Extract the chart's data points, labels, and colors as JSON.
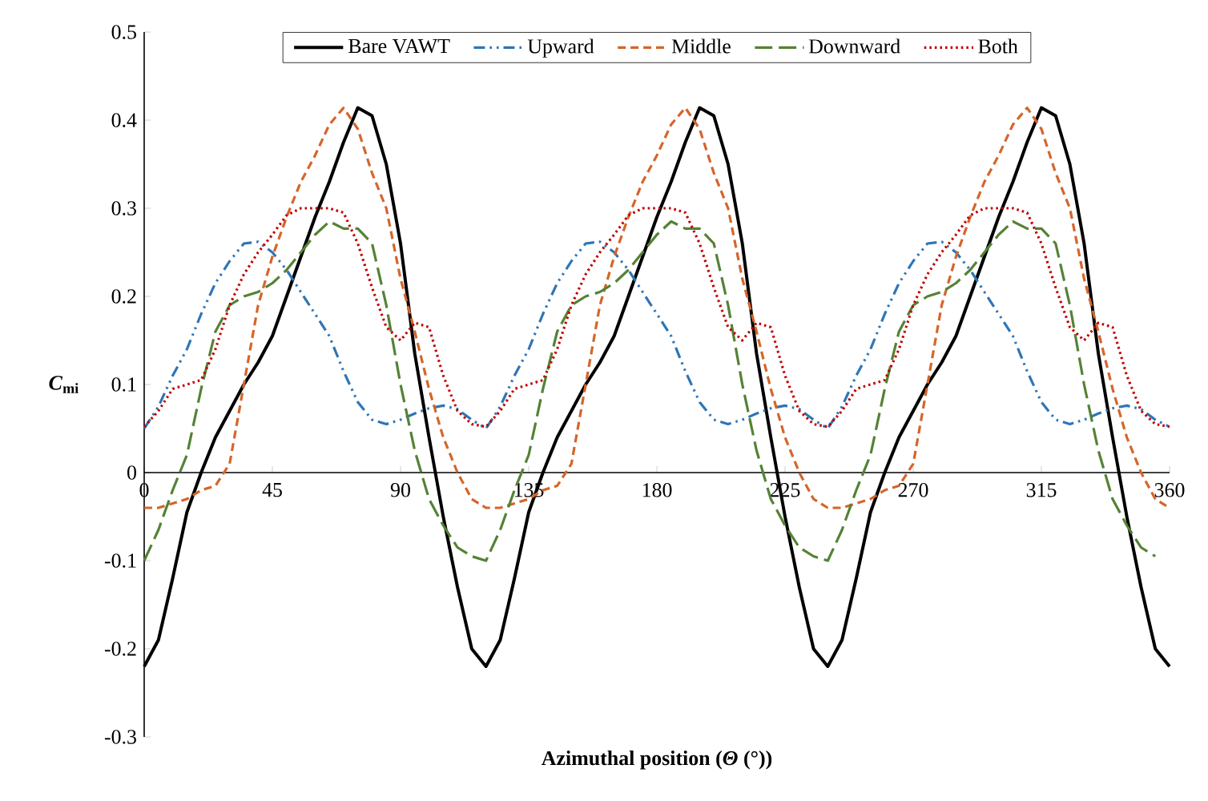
{
  "chart_data": {
    "type": "line",
    "xlabel": "Azimuthal position (*Θ* (°))",
    "ylabel": "*C*$_{mi}$",
    "x": [
      0,
      5,
      10,
      15,
      20,
      25,
      30,
      35,
      40,
      45,
      50,
      55,
      60,
      65,
      70,
      75,
      80,
      85,
      90,
      95,
      100,
      105,
      110,
      115,
      120,
      125,
      130,
      135,
      140,
      145,
      150,
      155,
      160,
      165,
      170,
      175,
      180,
      185,
      190,
      195,
      200,
      205,
      210,
      215,
      220,
      225,
      230,
      235,
      240,
      245,
      250,
      255,
      260,
      265,
      270,
      275,
      280,
      285,
      290,
      295,
      300,
      305,
      310,
      315,
      320,
      325,
      330,
      335,
      340,
      345,
      350,
      355,
      360
    ],
    "series": [
      {
        "name": "Bare VAWT",
        "color": "#000000",
        "line_style": "solid",
        "values": [
          -0.22,
          -0.19,
          -0.12,
          -0.045,
          0.0,
          0.04,
          0.07,
          0.1,
          0.125,
          0.155,
          0.2,
          0.245,
          0.29,
          0.33,
          0.375,
          0.414,
          0.405,
          0.35,
          0.26,
          0.135,
          0.04,
          -0.05,
          -0.13,
          -0.2,
          -0.22,
          -0.19,
          -0.12,
          -0.045,
          0.0,
          0.04,
          0.07,
          0.1,
          0.125,
          0.155,
          0.2,
          0.245,
          0.29,
          0.33,
          0.375,
          0.414,
          0.405,
          0.35,
          0.26,
          0.135,
          0.04,
          -0.05,
          -0.13,
          -0.2,
          -0.22,
          -0.19,
          -0.12,
          -0.045,
          0.0,
          0.04,
          0.07,
          0.1,
          0.125,
          0.155,
          0.2,
          0.245,
          0.29,
          0.33,
          0.375,
          0.414,
          0.405,
          0.35,
          0.26,
          0.135,
          0.04,
          -0.05,
          -0.13,
          -0.2,
          -0.22
        ]
      },
      {
        "name": "Upward",
        "color": "#2e75b6",
        "line_style": "dashdotdot",
        "values": [
          0.05,
          0.075,
          0.11,
          0.14,
          0.18,
          0.215,
          0.24,
          0.26,
          0.262,
          0.25,
          0.23,
          0.205,
          0.18,
          0.155,
          0.115,
          0.08,
          0.06,
          0.055,
          0.06,
          0.067,
          0.073,
          0.076,
          0.072,
          0.06,
          0.05,
          0.075,
          0.11,
          0.14,
          0.18,
          0.215,
          0.24,
          0.26,
          0.262,
          0.25,
          0.23,
          0.205,
          0.18,
          0.155,
          0.115,
          0.08,
          0.06,
          0.055,
          0.06,
          0.067,
          0.073,
          0.076,
          0.072,
          0.06,
          0.05,
          0.075,
          0.11,
          0.14,
          0.18,
          0.215,
          0.24,
          0.26,
          0.262,
          0.25,
          0.23,
          0.205,
          0.18,
          0.155,
          0.115,
          0.08,
          0.06,
          0.055,
          0.06,
          0.067,
          0.073,
          0.076,
          0.072,
          0.06,
          0.052
        ]
      },
      {
        "name": "Middle",
        "color": "#d5652a",
        "line_style": "dashed",
        "values": [
          -0.04,
          -0.04,
          -0.035,
          -0.03,
          -0.02,
          -0.015,
          0.01,
          0.1,
          0.19,
          0.245,
          0.29,
          0.33,
          0.36,
          0.395,
          0.414,
          0.39,
          0.34,
          0.3,
          0.22,
          0.16,
          0.095,
          0.04,
          0.0,
          -0.03,
          -0.04,
          -0.04,
          -0.035,
          -0.03,
          -0.02,
          -0.015,
          0.01,
          0.1,
          0.19,
          0.245,
          0.29,
          0.33,
          0.36,
          0.395,
          0.414,
          0.39,
          0.34,
          0.3,
          0.22,
          0.16,
          0.095,
          0.04,
          0.0,
          -0.03,
          -0.04,
          -0.04,
          -0.035,
          -0.03,
          -0.02,
          -0.015,
          0.01,
          0.1,
          0.19,
          0.245,
          0.29,
          0.33,
          0.36,
          0.395,
          0.414,
          0.39,
          0.34,
          0.3,
          0.22,
          0.16,
          0.095,
          0.04,
          0.0,
          -0.03,
          -0.04
        ]
      },
      {
        "name": "Downward",
        "color": "#548235",
        "line_style": "longdashed",
        "values": [
          -0.1,
          -0.065,
          -0.02,
          0.02,
          0.095,
          0.16,
          0.19,
          0.2,
          0.205,
          0.215,
          0.23,
          0.25,
          0.27,
          0.285,
          0.277,
          0.277,
          0.26,
          0.19,
          0.1,
          0.025,
          -0.03,
          -0.06,
          -0.085,
          -0.095,
          -0.1,
          -0.065,
          -0.02,
          0.02,
          0.095,
          0.16,
          0.19,
          0.2,
          0.205,
          0.215,
          0.23,
          0.25,
          0.27,
          0.285,
          0.277,
          0.277,
          0.26,
          0.19,
          0.1,
          0.025,
          -0.03,
          -0.06,
          -0.085,
          -0.095,
          -0.1,
          -0.065,
          -0.02,
          0.02,
          0.095,
          0.16,
          0.19,
          0.2,
          0.205,
          0.215,
          0.23,
          0.25,
          0.27,
          0.285,
          0.277,
          0.277,
          0.26,
          0.19,
          0.1,
          0.025,
          -0.03,
          -0.06,
          -0.085,
          -0.095,
          null
        ]
      },
      {
        "name": "Both",
        "color": "#c00000",
        "line_style": "dotted",
        "values": [
          0.052,
          0.07,
          0.095,
          0.1,
          0.105,
          0.14,
          0.19,
          0.225,
          0.25,
          0.27,
          0.292,
          0.3,
          0.3,
          0.3,
          0.295,
          0.26,
          0.21,
          0.165,
          0.15,
          0.17,
          0.165,
          0.11,
          0.07,
          0.055,
          0.052,
          0.07,
          0.095,
          0.1,
          0.105,
          0.14,
          0.19,
          0.225,
          0.25,
          0.27,
          0.292,
          0.3,
          0.3,
          0.3,
          0.295,
          0.26,
          0.21,
          0.165,
          0.15,
          0.17,
          0.165,
          0.11,
          0.07,
          0.055,
          0.052,
          0.07,
          0.095,
          0.1,
          0.105,
          0.14,
          0.19,
          0.225,
          0.25,
          0.27,
          0.292,
          0.3,
          0.3,
          0.3,
          0.295,
          0.26,
          0.21,
          0.165,
          0.15,
          0.17,
          0.165,
          0.11,
          0.07,
          0.055,
          0.052
        ]
      }
    ],
    "xlim": [
      0,
      360
    ],
    "xticks": [
      0,
      45,
      90,
      135,
      180,
      225,
      270,
      315,
      360
    ],
    "ylim": [
      -0.3,
      0.5
    ],
    "yticks": [
      -0.3,
      -0.2,
      -0.1,
      0,
      0.1,
      0.2,
      0.3,
      0.4,
      0.5
    ],
    "legend": "top",
    "grid": false,
    "marker": "none"
  }
}
